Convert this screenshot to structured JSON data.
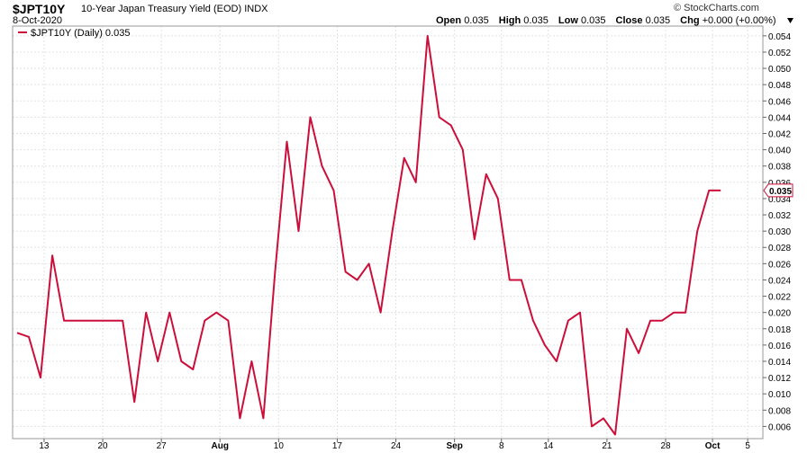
{
  "header": {
    "symbol": "$JPT10Y",
    "description": "10-Year Japan Treasury Yield (EOD)",
    "exchange": "INDX",
    "date": "8-Oct-2020",
    "brand": "© StockCharts.com",
    "open_label": "Open",
    "open": "0.035",
    "high_label": "High",
    "high": "0.035",
    "low_label": "Low",
    "low": "0.035",
    "close_label": "Close",
    "close": "0.035",
    "chg_label": "Chg",
    "chg": "+0.000 (+0.00%)",
    "chg_arrow": "down-arrow-icon"
  },
  "chart_data": {
    "type": "line",
    "legend": {
      "label": "$JPT10Y (Daily) 0.035",
      "placement": "top-left"
    },
    "y_ticks": [
      "0.006",
      "0.008",
      "0.010",
      "0.012",
      "0.014",
      "0.016",
      "0.018",
      "0.020",
      "0.022",
      "0.024",
      "0.026",
      "0.028",
      "0.030",
      "0.032",
      "0.034",
      "0.036",
      "0.038",
      "0.040",
      "0.042",
      "0.044",
      "0.046",
      "0.048",
      "0.050",
      "0.052",
      "0.054"
    ],
    "ylim": [
      0.0045,
      0.0552
    ],
    "x_ticks": [
      {
        "label": "13",
        "index": 2.3
      },
      {
        "label": "20",
        "index": 7.3
      },
      {
        "label": "27",
        "index": 12.3
      },
      {
        "label": "Aug",
        "index": 17.3,
        "bold": true
      },
      {
        "label": "10",
        "index": 22.3
      },
      {
        "label": "17",
        "index": 27.3
      },
      {
        "label": "24",
        "index": 32.3
      },
      {
        "label": "Sep",
        "index": 37.3,
        "bold": true
      },
      {
        "label": "8",
        "index": 41.3
      },
      {
        "label": "14",
        "index": 45.3
      },
      {
        "label": "21",
        "index": 50.3
      },
      {
        "label": "28",
        "index": 55.3
      },
      {
        "label": "Oct",
        "index": 59.3,
        "bold": true
      },
      {
        "label": "5",
        "index": 62.3
      }
    ],
    "series": [
      {
        "color": "#cc0f3a",
        "values": [
          0.0175,
          0.017,
          0.012,
          0.027,
          0.019,
          0.019,
          0.019,
          0.019,
          0.019,
          0.019,
          0.009,
          0.02,
          0.014,
          0.02,
          0.014,
          0.013,
          0.019,
          0.02,
          0.019,
          0.007,
          0.014,
          0.007,
          0.025,
          0.041,
          0.03,
          0.044,
          0.038,
          0.035,
          0.025,
          0.024,
          0.026,
          0.02,
          0.03,
          0.039,
          0.036,
          0.054,
          0.044,
          0.043,
          0.04,
          0.029,
          0.037,
          0.034,
          0.024,
          0.024,
          0.019,
          0.016,
          0.014,
          0.019,
          0.02,
          0.006,
          0.007,
          0.005,
          0.018,
          0.015,
          0.019,
          0.019,
          0.02,
          0.02,
          0.03,
          0.035,
          0.035
        ]
      }
    ],
    "last_value_label": "0.035",
    "grid": true
  }
}
